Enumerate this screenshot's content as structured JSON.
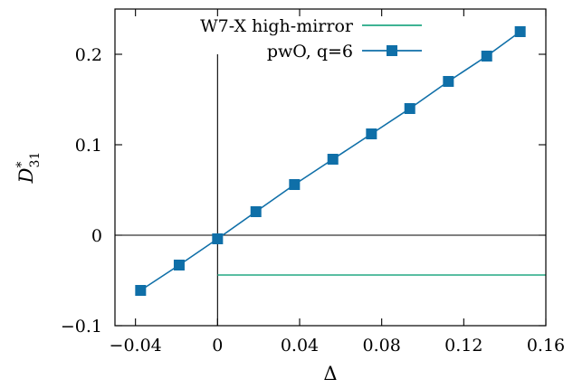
{
  "chart_data": {
    "type": "line",
    "title": "",
    "xlabel": "Δ",
    "ylabel": {
      "base": "D",
      "sup": "*",
      "sub": "31"
    },
    "xlim": [
      -0.05,
      0.16
    ],
    "ylim": [
      -0.1,
      0.25
    ],
    "xticks": [
      {
        "value": -0.04,
        "label": "−0.04"
      },
      {
        "value": 0,
        "label": "0"
      },
      {
        "value": 0.04,
        "label": "0.04"
      },
      {
        "value": 0.08,
        "label": "0.08"
      },
      {
        "value": 0.12,
        "label": "0.12"
      },
      {
        "value": 0.16,
        "label": "0.16"
      }
    ],
    "yticks": [
      {
        "value": -0.1,
        "label": "−0.1"
      },
      {
        "value": 0,
        "label": "0"
      },
      {
        "value": 0.1,
        "label": "0.1"
      },
      {
        "value": 0.2,
        "label": "0.2"
      }
    ],
    "grid": false,
    "zero_lines": {
      "x_start": 0,
      "x_end": 0.2,
      "y": 0
    },
    "legend_position": "top-right",
    "series": [
      {
        "name": "W7-X high-mirror",
        "color": "#22a884",
        "marker": "none",
        "x": [
          0,
          0.16
        ],
        "y": [
          -0.044,
          -0.044
        ]
      },
      {
        "name": "pwO, q=6",
        "color": "#0f6fa8",
        "marker": "square",
        "x": [
          -0.0375,
          -0.0187,
          0,
          0.0187,
          0.0375,
          0.0562,
          0.075,
          0.0937,
          0.1125,
          0.1312,
          0.1475
        ],
        "y": [
          -0.061,
          -0.033,
          -0.004,
          0.026,
          0.056,
          0.084,
          0.112,
          0.14,
          0.17,
          0.198,
          0.225
        ]
      }
    ]
  }
}
